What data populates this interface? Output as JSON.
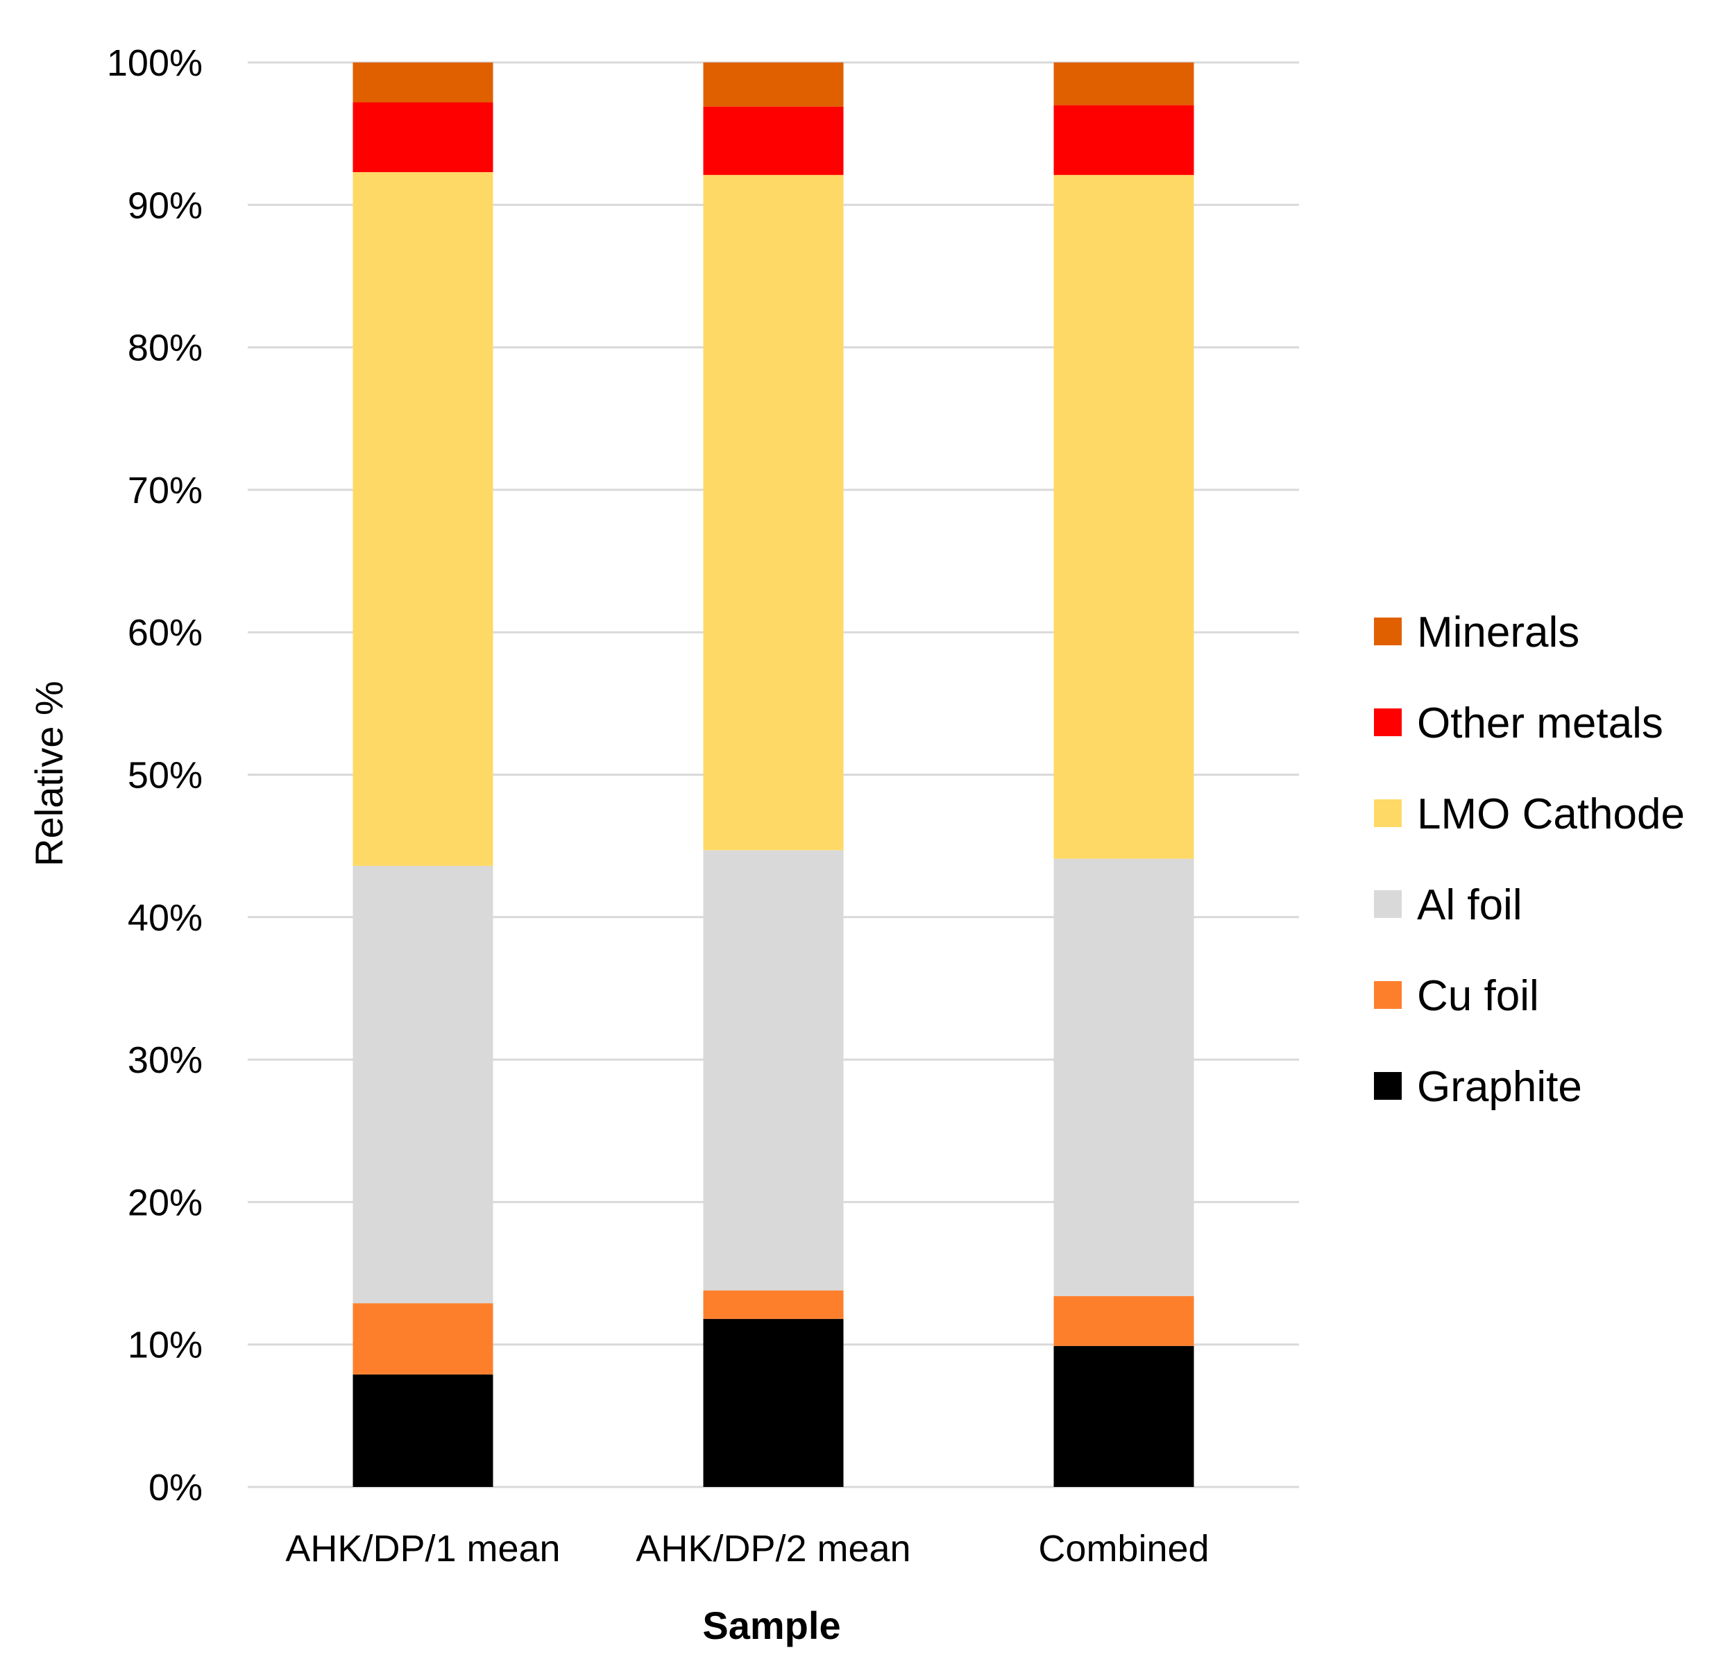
{
  "chart_data": {
    "type": "bar",
    "stacked": true,
    "xlabel": "Sample",
    "ylabel": "Relative %",
    "ylim": [
      0,
      100
    ],
    "y_ticks": [
      "0%",
      "10%",
      "20%",
      "30%",
      "40%",
      "50%",
      "60%",
      "70%",
      "80%",
      "90%",
      "100%"
    ],
    "grid": true,
    "legend_position": "right",
    "categories": [
      "AHK/DP/1 mean",
      "AHK/DP/2 mean",
      "Combined"
    ],
    "series": [
      {
        "name": "Graphite",
        "color": "#000000",
        "values": [
          7.9,
          11.8,
          9.9
        ]
      },
      {
        "name": "Cu foil",
        "color": "#fd7f2c",
        "values": [
          5.0,
          2.0,
          3.5
        ]
      },
      {
        "name": "Al foil",
        "color": "#d9d9d9",
        "values": [
          30.7,
          30.9,
          30.7
        ]
      },
      {
        "name": "LMO Cathode",
        "color": "#ffd966",
        "values": [
          48.7,
          47.4,
          48.0
        ]
      },
      {
        "name": "Other metals",
        "color": "#ff0000",
        "values": [
          4.9,
          4.8,
          4.9
        ]
      },
      {
        "name": "Minerals",
        "color": "#e06000",
        "values": [
          2.8,
          3.1,
          3.0
        ]
      }
    ]
  }
}
